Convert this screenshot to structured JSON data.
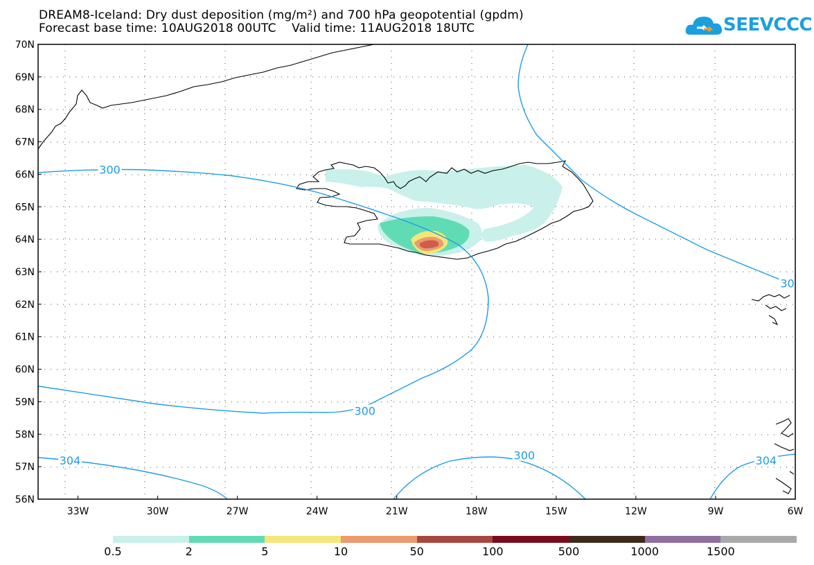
{
  "title": {
    "line1": "DREAM8-Iceland: Dry dust deposition (mg/m²) and 700 hPa geopotential (gpdm)",
    "line2": "Forecast base time: 10AUG2018 00UTC    Valid time: 11AUG2018 18UTC"
  },
  "logo": {
    "text": "SEEVCCC",
    "icon": "cloud-icon",
    "color": "#1a9fe0"
  },
  "map": {
    "lat_labels": [
      "70N",
      "69N",
      "68N",
      "67N",
      "66N",
      "65N",
      "64N",
      "63N",
      "62N",
      "61N",
      "60N",
      "59N",
      "58N",
      "57N",
      "56N"
    ],
    "lon_labels": [
      "33W",
      "30W",
      "27W",
      "24W",
      "21W",
      "18W",
      "15W",
      "12W",
      "9W",
      "6W"
    ],
    "lat_range": [
      56,
      70
    ],
    "lon_range": [
      -34.5,
      -6
    ],
    "contour_color": "#1e9be8",
    "contour_labels": [
      {
        "text": "300",
        "lon": -31.8,
        "lat": 66.15
      },
      {
        "text": "300",
        "lon": -22.2,
        "lat": 58.72
      },
      {
        "text": "300",
        "lon": -16.2,
        "lat": 57.35
      },
      {
        "text": "304",
        "lon": -33.3,
        "lat": 57.2
      },
      {
        "text": "304",
        "lon": -7.1,
        "lat": 57.2
      },
      {
        "text": "30",
        "lon": -6.3,
        "lat": 62.65
      }
    ]
  },
  "legend": {
    "labels": [
      "0.5",
      "2",
      "5",
      "10",
      "50",
      "100",
      "500",
      "1000",
      "1500"
    ],
    "colors": [
      "#c9f0ea",
      "#5fdcb4",
      "#f4e678",
      "#ec9a6e",
      "#a7483e",
      "#7a0a1e",
      "#3d2a1a",
      "#8e6fa0",
      "#a9a9a9"
    ]
  }
}
